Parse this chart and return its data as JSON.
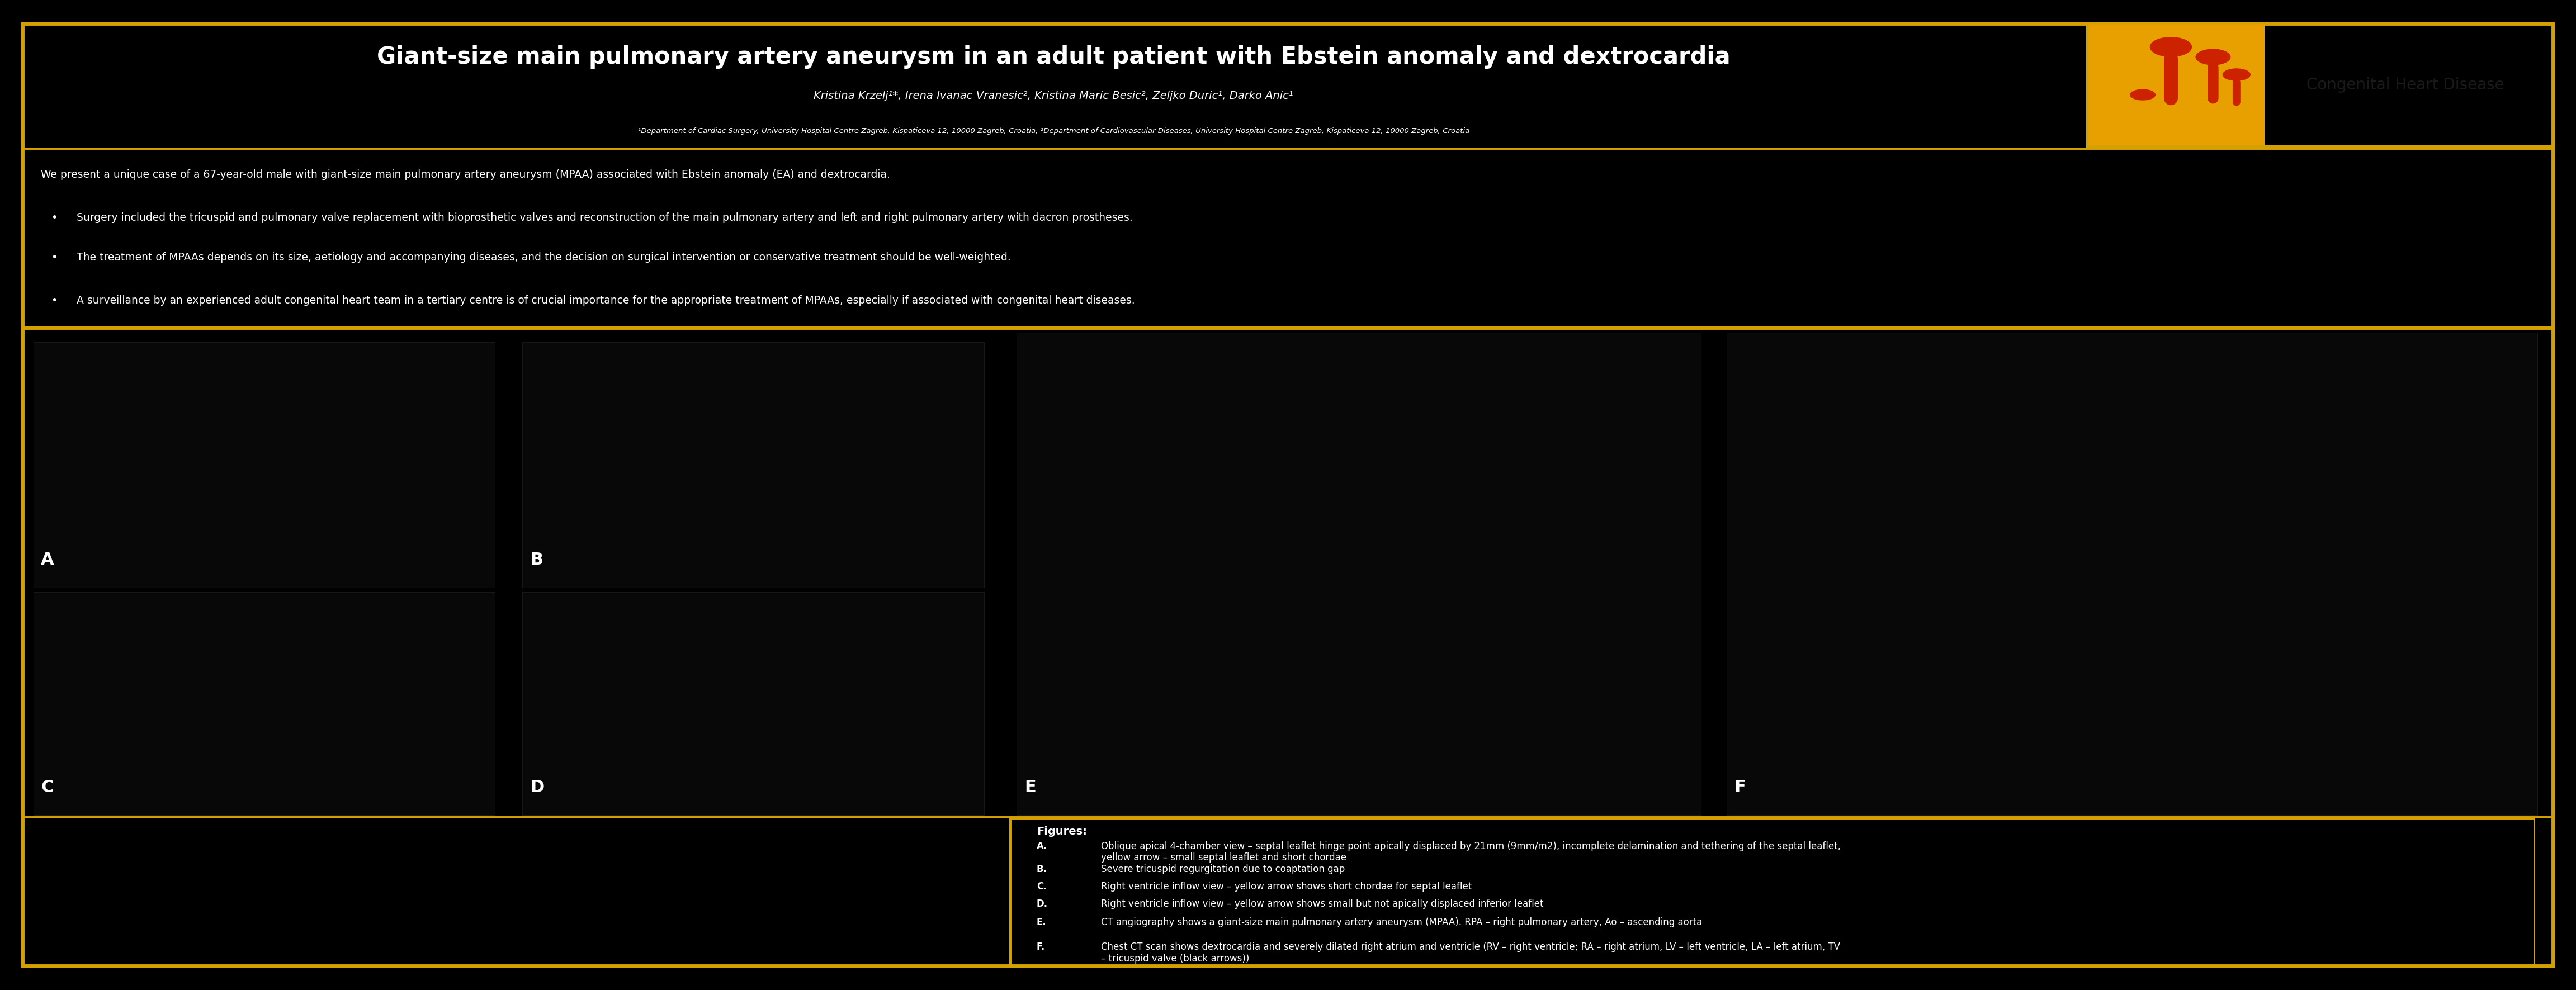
{
  "title": "Giant-size main pulmonary artery aneurysm in an adult patient with Ebstein anomaly and dextrocardia",
  "authors": "Kristina Krzelj¹*, Irena Ivanac Vranesic², Kristina Maric Besic², Zeljko Duric¹, Darko Anic¹",
  "affiliations": "¹Department of Cardiac Surgery, University Hospital Centre Zagreb, Kispaticeva 12, 10000 Zagreb, Croatia; ²Department of Cardiovascular Diseases, University Hospital Centre Zagreb, Kispaticeva 12, 10000 Zagreb, Croatia",
  "abstract_line0": "We present a unique case of a 67-year-old male with giant-size main pulmonary artery aneurysm (MPAA) associated with Ebstein anomaly (EA) and dextrocardia.",
  "abstract_bullets": [
    "Surgery included the tricuspid and pulmonary valve replacement with bioprosthetic valves and reconstruction of the main pulmonary artery and left and right pulmonary artery with dacron prostheses.",
    "The treatment of MPAAs depends on its size, aetiology and accompanying diseases, and the decision on surgical intervention or conservative treatment should be well-weighted.",
    "A surveillance by an experienced adult congenital heart team in a tertiary centre is of crucial importance for the appropriate treatment of MPAAs, especially if associated with congenital heart diseases."
  ],
  "figures_label": "Figures:",
  "figures_text": [
    [
      "A.",
      "Oblique apical 4-chamber view – septal leaflet hinge point apically displaced by 21mm (9mm/m2), incomplete delamination and tethering of the septal leaflet,\nyellow arrow – small septal leaflet and short chordae"
    ],
    [
      "B.",
      "Severe tricuspid regurgitation due to coaptation gap"
    ],
    [
      "C.",
      "Right ventricle inflow view – yellow arrow shows short chordae for septal leaflet"
    ],
    [
      "D.",
      "Right ventricle inflow view – yellow arrow shows small but not apically displaced inferior leaflet"
    ],
    [
      "E.",
      "CT angiography shows a giant-size main pulmonary artery aneurysm (MPAA). RPA – right pulmonary artery, Ao – ascending aorta"
    ],
    [
      "F.",
      "Chest CT scan shows dextrocardia and severely dilated right atrium and ventricle (RV – right ventricle; RA – right atrium, LV – left ventricle, LA – left atrium, TV\n– tricuspid valve (black arrows))"
    ]
  ],
  "header_red": "#CC0000",
  "gold": "#D4A000",
  "logo_yellow": "#E8A000",
  "logo_bg": "#E8E8E8",
  "logo_text": "Congenital Heart Disease",
  "outer_bg": "#000000",
  "panel_labels": [
    "A",
    "B",
    "C",
    "D",
    "E",
    "F"
  ]
}
